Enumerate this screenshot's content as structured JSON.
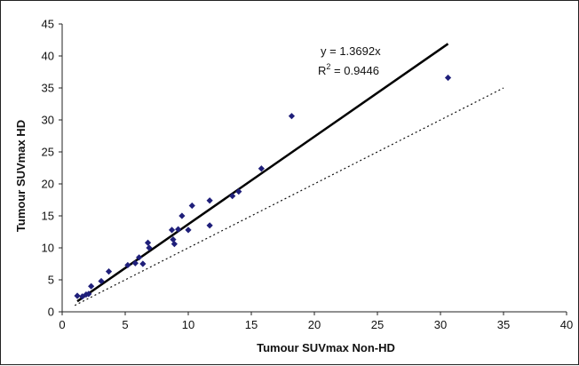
{
  "chart_data": {
    "type": "scatter",
    "title": "",
    "xlabel": "Tumour SUVmax Non-HD",
    "ylabel": "Tumour SUVmax HD",
    "xlim": [
      0,
      40
    ],
    "ylim": [
      0,
      45
    ],
    "xticks": [
      "0",
      "5",
      "10",
      "15",
      "20",
      "25",
      "30",
      "35",
      "40"
    ],
    "yticks": [
      "0",
      "5",
      "10",
      "15",
      "20",
      "25",
      "30",
      "35",
      "40",
      "45"
    ],
    "grid": false,
    "legend": "none",
    "marker_color": "#1f1f7a",
    "points": [
      {
        "x": 1.2,
        "y": 2.5
      },
      {
        "x": 1.6,
        "y": 2.4
      },
      {
        "x": 1.9,
        "y": 2.7
      },
      {
        "x": 2.1,
        "y": 2.8
      },
      {
        "x": 2.3,
        "y": 4.0
      },
      {
        "x": 3.1,
        "y": 4.8
      },
      {
        "x": 3.7,
        "y": 6.3
      },
      {
        "x": 5.2,
        "y": 7.3
      },
      {
        "x": 5.8,
        "y": 7.6
      },
      {
        "x": 6.1,
        "y": 8.5
      },
      {
        "x": 6.4,
        "y": 7.5
      },
      {
        "x": 6.8,
        "y": 10.8
      },
      {
        "x": 6.9,
        "y": 10.0
      },
      {
        "x": 8.7,
        "y": 12.8
      },
      {
        "x": 8.8,
        "y": 11.3
      },
      {
        "x": 8.9,
        "y": 10.6
      },
      {
        "x": 9.2,
        "y": 12.9
      },
      {
        "x": 9.5,
        "y": 15.0
      },
      {
        "x": 10.0,
        "y": 12.8
      },
      {
        "x": 10.3,
        "y": 16.6
      },
      {
        "x": 11.7,
        "y": 17.4
      },
      {
        "x": 11.7,
        "y": 13.5
      },
      {
        "x": 13.5,
        "y": 18.1
      },
      {
        "x": 14.0,
        "y": 18.8
      },
      {
        "x": 15.8,
        "y": 22.4
      },
      {
        "x": 18.2,
        "y": 30.6
      },
      {
        "x": 30.6,
        "y": 36.6
      }
    ],
    "trendline": {
      "slope": 1.3692,
      "x_start": 1.2,
      "x_end": 30.6,
      "color": "#000000"
    },
    "identity_line": {
      "x_start": 1.0,
      "x_end": 35.0,
      "style": "dotted"
    },
    "annotations": {
      "equation": "y = 1.3692x",
      "r2_prefix": "R",
      "r2_sup": "2",
      "r2_value": " = 0.9446"
    }
  }
}
